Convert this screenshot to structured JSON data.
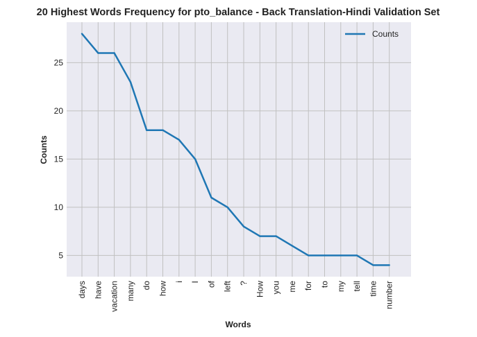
{
  "chart_data": {
    "type": "line",
    "title": "20 Highest Words Frequency for pto_balance - Back Translation-Hindi Validation Set",
    "xlabel": "Words",
    "ylabel": "Counts",
    "categories": [
      "days",
      "have",
      "vacation",
      "many",
      "do",
      "how",
      "i",
      "I",
      "of",
      "left",
      "?",
      "How",
      "you",
      "me",
      "for",
      "to",
      "my",
      "tell",
      "time",
      "number"
    ],
    "series": [
      {
        "name": "Counts",
        "values": [
          28,
          26,
          26,
          23,
          18,
          18,
          17,
          15,
          11,
          10,
          8,
          7,
          7,
          6,
          5,
          5,
          5,
          5,
          4,
          4
        ],
        "color": "#1f77b4"
      }
    ],
    "yticks": [
      5,
      10,
      15,
      20,
      25
    ],
    "ylim": [
      2.8,
      29.2
    ],
    "grid": true,
    "legend": "top-right",
    "background": "#eaeaf2",
    "grid_color": "#c0c0c0"
  }
}
